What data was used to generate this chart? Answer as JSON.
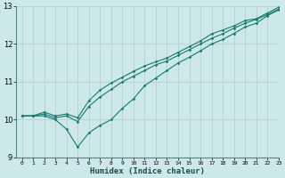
{
  "xlabel": "Humidex (Indice chaleur)",
  "x": [
    0,
    1,
    2,
    3,
    4,
    5,
    6,
    7,
    8,
    9,
    10,
    11,
    12,
    13,
    14,
    15,
    16,
    17,
    18,
    19,
    20,
    21,
    22,
    23
  ],
  "line1": [
    10.1,
    10.1,
    10.1,
    10.0,
    9.75,
    9.28,
    9.65,
    9.85,
    10.0,
    10.3,
    10.55,
    10.9,
    11.1,
    11.3,
    11.5,
    11.65,
    11.82,
    12.0,
    12.12,
    12.28,
    12.45,
    12.55,
    12.75,
    12.9
  ],
  "line2": [
    10.1,
    10.1,
    10.15,
    10.05,
    10.1,
    9.95,
    10.35,
    10.6,
    10.8,
    11.0,
    11.15,
    11.3,
    11.45,
    11.55,
    11.7,
    11.85,
    12.0,
    12.15,
    12.27,
    12.42,
    12.55,
    12.65,
    12.78,
    12.92
  ],
  "line3": [
    10.1,
    10.1,
    10.2,
    10.1,
    10.15,
    10.05,
    10.5,
    10.78,
    10.97,
    11.12,
    11.28,
    11.42,
    11.53,
    11.63,
    11.78,
    11.93,
    12.08,
    12.27,
    12.37,
    12.48,
    12.62,
    12.67,
    12.82,
    12.97
  ],
  "line_color": "#1a7a6e",
  "bg_color": "#cce8e8",
  "grid_color": "#b8d0d0",
  "ylim": [
    9.0,
    13.0
  ],
  "xlim": [
    -0.5,
    23
  ],
  "yticks": [
    9,
    10,
    11,
    12,
    13
  ],
  "xticks": [
    0,
    1,
    2,
    3,
    4,
    5,
    6,
    7,
    8,
    9,
    10,
    11,
    12,
    13,
    14,
    15,
    16,
    17,
    18,
    19,
    20,
    21,
    22,
    23
  ]
}
